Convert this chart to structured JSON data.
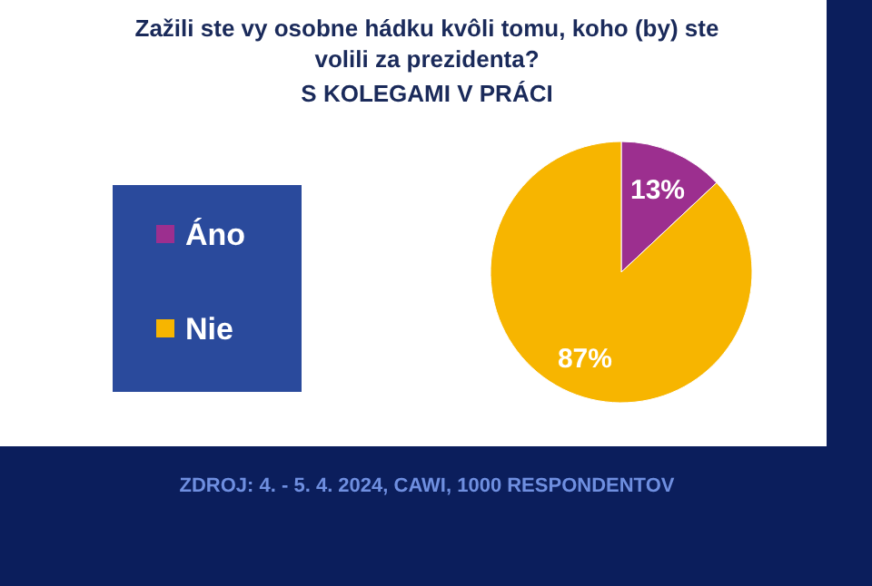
{
  "chart_data": {
    "type": "pie",
    "title": "Zažili ste vy osobne hádku kvôli tomu, koho (by) ste volili za prezidenta?",
    "subtitle": "S KOLEGAMI V PRÁCI",
    "categories": [
      "Áno",
      "Nie"
    ],
    "values": [
      13,
      87
    ],
    "colors": [
      "#9c2f8f",
      "#f7b500"
    ],
    "data_labels": true,
    "value_labels": [
      "13%",
      "87%"
    ],
    "legend": "left",
    "annotations": [
      "ZDROJ: 4. - 5. 4. 2024, CAWI, 1000 RESPONDENTOV"
    ]
  }
}
